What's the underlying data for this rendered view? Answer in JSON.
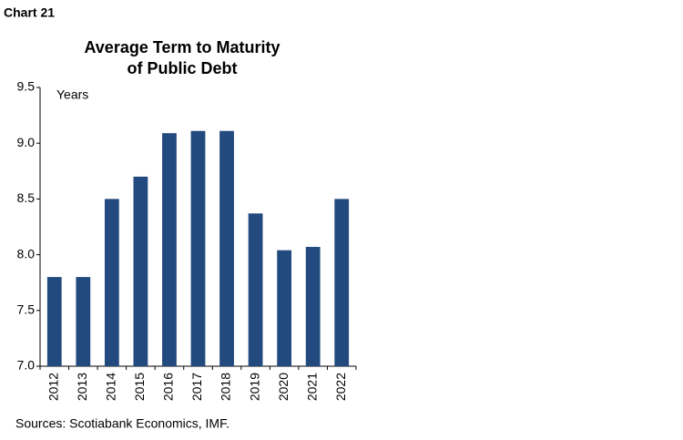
{
  "header": "Chart 21",
  "chart_data": {
    "type": "bar",
    "title": [
      "Average Term to Maturity",
      "of Public Debt"
    ],
    "y_label": "Years",
    "categories": [
      "2012",
      "2013",
      "2014",
      "2015",
      "2016",
      "2017",
      "2018",
      "2019",
      "2020",
      "2021",
      "2022"
    ],
    "values": [
      7.8,
      7.8,
      8.5,
      8.7,
      9.09,
      9.11,
      9.11,
      8.37,
      8.04,
      8.07,
      8.5
    ],
    "color": "#224a7e",
    "ylim": [
      7.0,
      9.5
    ],
    "yticks": [
      {
        "value": 7.0,
        "label": "7.0"
      },
      7.5,
      {
        "value": 8.0,
        "label": "8.0"
      },
      8.5,
      {
        "value": 9.0,
        "label": "9.0"
      },
      9.5
    ],
    "grid": false,
    "source": "Sources: Scotiabank Economics, IMF."
  }
}
